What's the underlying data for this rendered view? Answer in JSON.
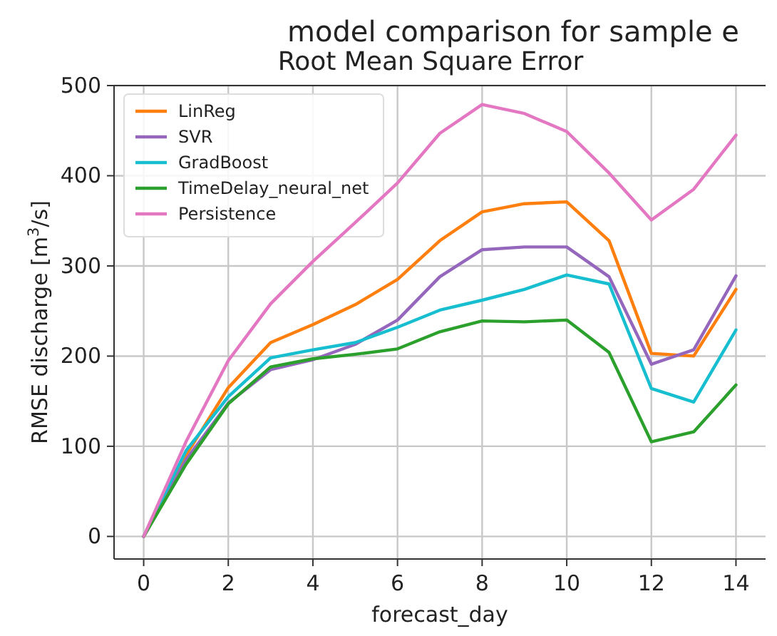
{
  "chart_data": {
    "type": "line",
    "title": "model comparison for sample e",
    "subtitle": "Root Mean Square Error",
    "xlabel": "forecast_day",
    "ylabel": "RMSE discharge [m$^{3}$/s]",
    "x": [
      0,
      1,
      2,
      3,
      4,
      5,
      6,
      7,
      8,
      9,
      10,
      11,
      12,
      13,
      14
    ],
    "series": [
      {
        "name": "LinReg",
        "color": "#ff7f0e",
        "values": [
          0,
          90,
          165,
          215,
          235,
          257,
          285,
          328,
          360,
          369,
          371,
          328,
          203,
          200,
          274
        ]
      },
      {
        "name": "SVR",
        "color": "#9467bd",
        "values": [
          0,
          85,
          148,
          185,
          196,
          213,
          240,
          288,
          318,
          321,
          321,
          288,
          191,
          207,
          289
        ]
      },
      {
        "name": "GradBoost",
        "color": "#17becf",
        "values": [
          0,
          95,
          155,
          198,
          207,
          215,
          232,
          251,
          262,
          274,
          290,
          280,
          164,
          149,
          229
        ]
      },
      {
        "name": "TimeDelay_neural_net",
        "color": "#2ca02c",
        "values": [
          0,
          80,
          147,
          188,
          197,
          202,
          208,
          227,
          239,
          238,
          240,
          204,
          105,
          116,
          168
        ]
      },
      {
        "name": "Persistence",
        "color": "#e377c2",
        "values": [
          0,
          105,
          195,
          258,
          305,
          348,
          392,
          447,
          479,
          469,
          449,
          403,
          351,
          385,
          445
        ]
      }
    ],
    "xlim": [
      -0.7,
      14.7
    ],
    "ylim": [
      -25,
      500
    ],
    "xticks": [
      0,
      2,
      4,
      6,
      8,
      10,
      12,
      14
    ],
    "yticks": [
      0,
      100,
      200,
      300,
      400,
      500
    ],
    "grid": true,
    "legend": "top left",
    "marker": "none",
    "line_style": "solid"
  }
}
